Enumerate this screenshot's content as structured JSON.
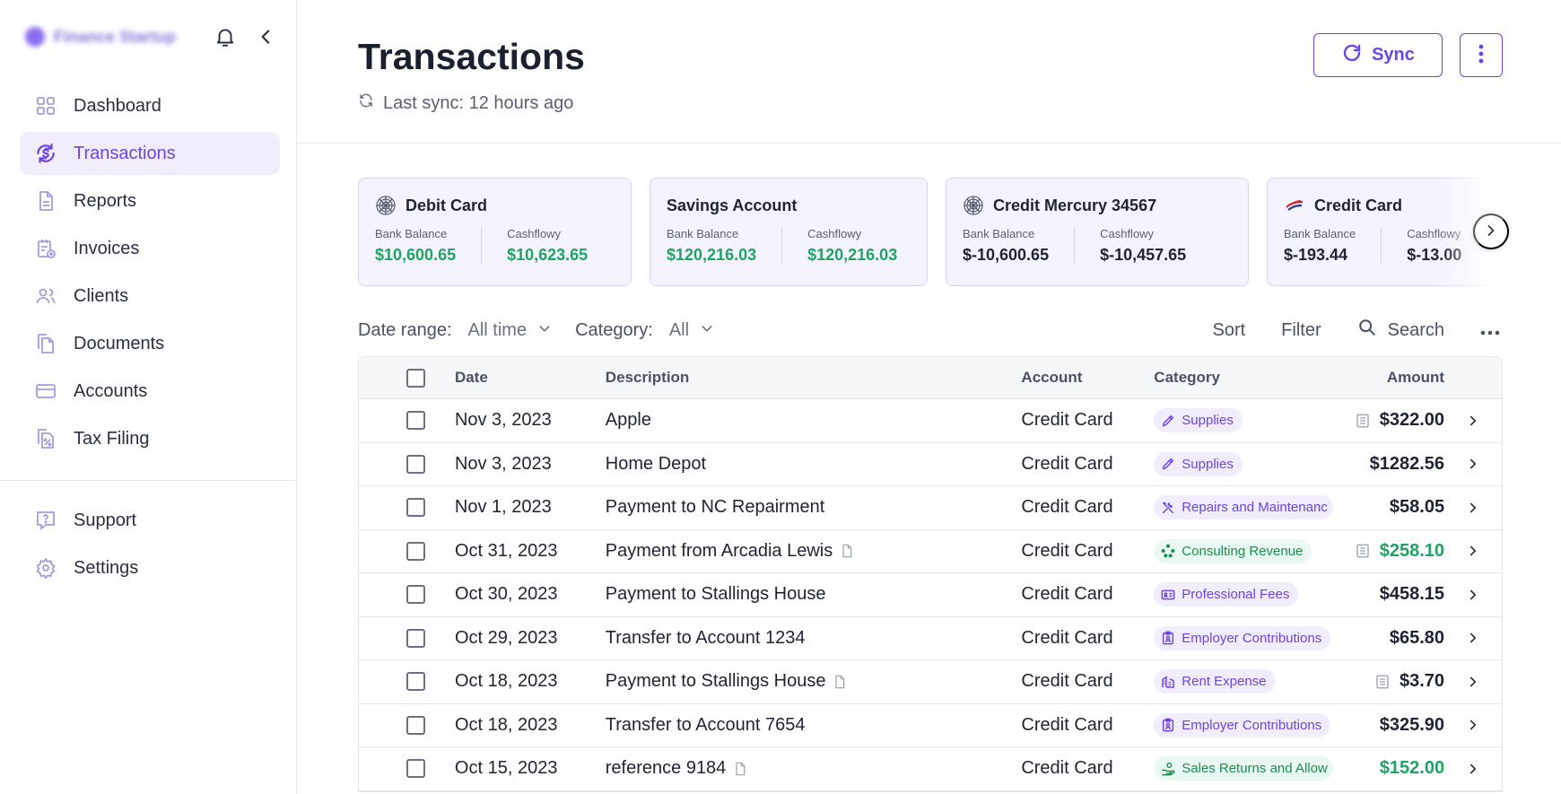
{
  "brand": {
    "name": "Finance Startup"
  },
  "nav": [
    {
      "label": "Dashboard",
      "icon": "dashboard-icon",
      "active": false
    },
    {
      "label": "Transactions",
      "icon": "transactions-icon",
      "active": true
    },
    {
      "label": "Reports",
      "icon": "reports-icon",
      "active": false
    },
    {
      "label": "Invoices",
      "icon": "invoices-icon",
      "active": false
    },
    {
      "label": "Clients",
      "icon": "clients-icon",
      "active": false
    },
    {
      "label": "Documents",
      "icon": "documents-icon",
      "active": false
    },
    {
      "label": "Accounts",
      "icon": "accounts-icon",
      "active": false
    },
    {
      "label": "Tax Filing",
      "icon": "tax-filing-icon",
      "active": false
    }
  ],
  "nav_secondary": [
    {
      "label": "Support",
      "icon": "support-icon"
    },
    {
      "label": "Settings",
      "icon": "settings-icon"
    }
  ],
  "header": {
    "title": "Transactions",
    "last_sync": "Last sync: 12 hours ago",
    "sync_label": "Sync"
  },
  "cards": [
    {
      "name": "Debit Card",
      "icon": "bank-seal-icon",
      "k1": "Bank Balance",
      "v1": "$10,600.65",
      "v1_pos": true,
      "k2": "Cashflowy",
      "v2": "$10,623.65",
      "v2_pos": true,
      "width": 305
    },
    {
      "name": "Savings Account",
      "icon": "",
      "k1": "Bank Balance",
      "v1": "$120,216.03",
      "v1_pos": true,
      "k2": "Cashflowy",
      "v2": "$120,216.03",
      "v2_pos": true,
      "width": 310
    },
    {
      "name": "Credit Mercury 34567",
      "icon": "bank-seal-icon",
      "k1": "Bank Balance",
      "v1": "$-10,600.65",
      "v1_pos": false,
      "k2": "Cashflowy",
      "v2": "$-10,457.65",
      "v2_pos": false,
      "width": 338
    },
    {
      "name": "Credit Card",
      "icon": "bank-flag-icon",
      "k1": "Bank Balance",
      "v1": "$-193.44",
      "v1_pos": false,
      "k2": "Cashflowy",
      "v2": "$-13.00",
      "v2_pos": false,
      "width": 305
    }
  ],
  "filters": {
    "date_label": "Date range:",
    "date_value": "All time",
    "category_label": "Category:",
    "category_value": "All",
    "sort": "Sort",
    "filter": "Filter",
    "search": "Search"
  },
  "table": {
    "headers": {
      "date": "Date",
      "description": "Description",
      "account": "Account",
      "category": "Category",
      "amount": "Amount"
    },
    "rows": [
      {
        "date": "Nov 3, 2023",
        "description": "Apple",
        "doc": false,
        "account": "Credit Card",
        "category": "Supplies",
        "cat_icon": "pencil-icon",
        "cat_color": "purple",
        "amount": "$322.00",
        "positive": false,
        "receipt": true
      },
      {
        "date": "Nov 3, 2023",
        "description": "Home Depot",
        "doc": false,
        "account": "Credit Card",
        "category": "Supplies",
        "cat_icon": "pencil-icon",
        "cat_color": "purple",
        "amount": "$1282.56",
        "positive": false,
        "receipt": false
      },
      {
        "date": "Nov 1, 2023",
        "description": "Payment to NC Repairment",
        "doc": false,
        "account": "Credit Card",
        "category": "Repairs and Maintenanc",
        "cat_icon": "tools-icon",
        "cat_color": "purple",
        "amount": "$58.05",
        "positive": false,
        "receipt": false
      },
      {
        "date": "Oct 31, 2023",
        "description": "Payment from Arcadia Lewis",
        "doc": true,
        "account": "Credit Card",
        "category": "Consulting Revenue",
        "cat_icon": "network-icon",
        "cat_color": "green",
        "amount": "$258.10",
        "positive": true,
        "receipt": true
      },
      {
        "date": "Oct 30, 2023",
        "description": "Payment to Stallings House",
        "doc": false,
        "account": "Credit Card",
        "category": "Professional Fees",
        "cat_icon": "id-card-icon",
        "cat_color": "purple",
        "amount": "$458.15",
        "positive": false,
        "receipt": false
      },
      {
        "date": "Oct 29, 2023",
        "description": "Transfer to Account 1234",
        "doc": false,
        "account": "Credit Card",
        "category": "Employer Contributions",
        "cat_icon": "clipboard-user-icon",
        "cat_color": "purple",
        "amount": "$65.80",
        "positive": false,
        "receipt": false
      },
      {
        "date": "Oct 18, 2023",
        "description": "Payment to Stallings House",
        "doc": true,
        "account": "Credit Card",
        "category": "Rent Expense",
        "cat_icon": "building-icon",
        "cat_color": "purple",
        "amount": "$3.70",
        "positive": false,
        "receipt": true
      },
      {
        "date": "Oct 18, 2023",
        "description": "Transfer to Account 7654",
        "doc": false,
        "account": "Credit Card",
        "category": "Employer Contributions",
        "cat_icon": "clipboard-user-icon",
        "cat_color": "purple",
        "amount": "$325.90",
        "positive": false,
        "receipt": false
      },
      {
        "date": "Oct 15, 2023",
        "description": "reference 9184",
        "doc": true,
        "account": "Credit Card",
        "category": "Sales Returns and Allow",
        "cat_icon": "hand-coin-icon",
        "cat_color": "green",
        "amount": "$152.00",
        "positive": true,
        "receipt": false
      }
    ]
  },
  "colors": {
    "accent": "#6d44e6",
    "positive": "#1fa463",
    "text": "#1f2433"
  }
}
